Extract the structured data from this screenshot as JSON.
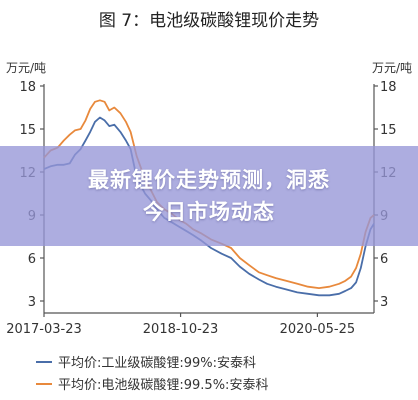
{
  "chart_data": {
    "type": "line",
    "title": "图 7：电池级碳酸锂现价走势",
    "left_unit": "万元/吨",
    "right_unit": "万元/吨",
    "ylim": [
      3,
      18
    ],
    "yticks": [
      "18",
      "15",
      "12",
      "9",
      "6",
      "3"
    ],
    "xticks": [
      {
        "label": "2017-03-23",
        "x": "2017-03-23"
      },
      {
        "label": "2018-10-23",
        "x": "2018-10-23"
      },
      {
        "label": "2020-05-25",
        "x": "2020-05-25"
      }
    ],
    "xlim": [
      "2017-03-23",
      "2021-01-20"
    ],
    "grid": false,
    "legend_position": "bottom",
    "series": [
      {
        "name": "平均价:工业级碳酸锂:99%:安泰科",
        "color": "#4a6ea9",
        "x": [
          "2017-03-23",
          "2017-04-20",
          "2017-05-20",
          "2017-06-15",
          "2017-07-10",
          "2017-08-01",
          "2017-08-25",
          "2017-09-15",
          "2017-10-05",
          "2017-10-25",
          "2017-11-15",
          "2017-12-05",
          "2017-12-25",
          "2018-01-15",
          "2018-02-10",
          "2018-03-05",
          "2018-03-25",
          "2018-04-20",
          "2018-05-25",
          "2018-06-20",
          "2018-07-15",
          "2018-08-15",
          "2018-09-15",
          "2018-10-15",
          "2018-11-15",
          "2018-12-15",
          "2019-01-20",
          "2019-03-01",
          "2019-04-15",
          "2019-05-25",
          "2019-07-01",
          "2019-08-10",
          "2019-09-20",
          "2019-10-25",
          "2019-12-01",
          "2020-01-15",
          "2020-03-01",
          "2020-04-15",
          "2020-06-01",
          "2020-07-15",
          "2020-08-25",
          "2020-09-20",
          "2020-10-15",
          "2020-11-05",
          "2020-11-25",
          "2020-12-15",
          "2021-01-05",
          "2021-01-20"
        ],
        "values": [
          12.2,
          12.4,
          12.5,
          12.5,
          12.6,
          13.2,
          13.6,
          14.2,
          14.8,
          15.5,
          15.8,
          15.6,
          15.2,
          15.3,
          14.8,
          14.2,
          13.6,
          11.6,
          10.5,
          10.0,
          9.4,
          8.8,
          8.5,
          8.2,
          7.9,
          7.6,
          7.2,
          6.7,
          6.3,
          6.0,
          5.4,
          4.9,
          4.5,
          4.2,
          4.0,
          3.8,
          3.6,
          3.5,
          3.4,
          3.4,
          3.5,
          3.7,
          3.9,
          4.3,
          5.3,
          6.8,
          8.0,
          8.4
        ]
      },
      {
        "name": "平均价:电池级碳酸锂:99.5%:安泰科",
        "color": "#e8893c",
        "x": [
          "2017-03-23",
          "2017-04-20",
          "2017-05-20",
          "2017-06-15",
          "2017-07-10",
          "2017-08-01",
          "2017-08-25",
          "2017-09-15",
          "2017-10-05",
          "2017-10-25",
          "2017-11-15",
          "2017-12-05",
          "2017-12-25",
          "2018-01-15",
          "2018-02-10",
          "2018-03-05",
          "2018-03-25",
          "2018-04-20",
          "2018-05-25",
          "2018-06-20",
          "2018-07-15",
          "2018-08-15",
          "2018-09-15",
          "2018-10-15",
          "2018-11-15",
          "2018-12-15",
          "2019-01-20",
          "2019-03-01",
          "2019-04-15",
          "2019-05-25",
          "2019-07-01",
          "2019-08-10",
          "2019-09-20",
          "2019-10-25",
          "2019-12-01",
          "2020-01-15",
          "2020-03-01",
          "2020-04-15",
          "2020-06-01",
          "2020-07-15",
          "2020-08-25",
          "2020-09-20",
          "2020-10-15",
          "2020-11-05",
          "2020-11-25",
          "2020-12-15",
          "2021-01-05",
          "2021-01-20"
        ],
        "values": [
          13.0,
          13.5,
          13.7,
          14.2,
          14.6,
          14.9,
          15.0,
          15.6,
          16.4,
          16.9,
          17.0,
          16.9,
          16.3,
          16.5,
          16.1,
          15.5,
          14.8,
          13.1,
          11.5,
          10.7,
          9.9,
          9.4,
          9.1,
          8.7,
          8.4,
          8.0,
          7.7,
          7.3,
          7.0,
          6.7,
          6.0,
          5.5,
          5.0,
          4.8,
          4.6,
          4.4,
          4.2,
          4.0,
          3.9,
          4.0,
          4.2,
          4.4,
          4.7,
          5.3,
          6.3,
          7.8,
          8.8,
          9.0
        ]
      }
    ]
  },
  "banner": {
    "line1": "最新锂价走势预测，洞悉",
    "line2": "今日市场动态"
  },
  "colors": {
    "axis": "#555555",
    "banner_bg": "#9696d7"
  }
}
